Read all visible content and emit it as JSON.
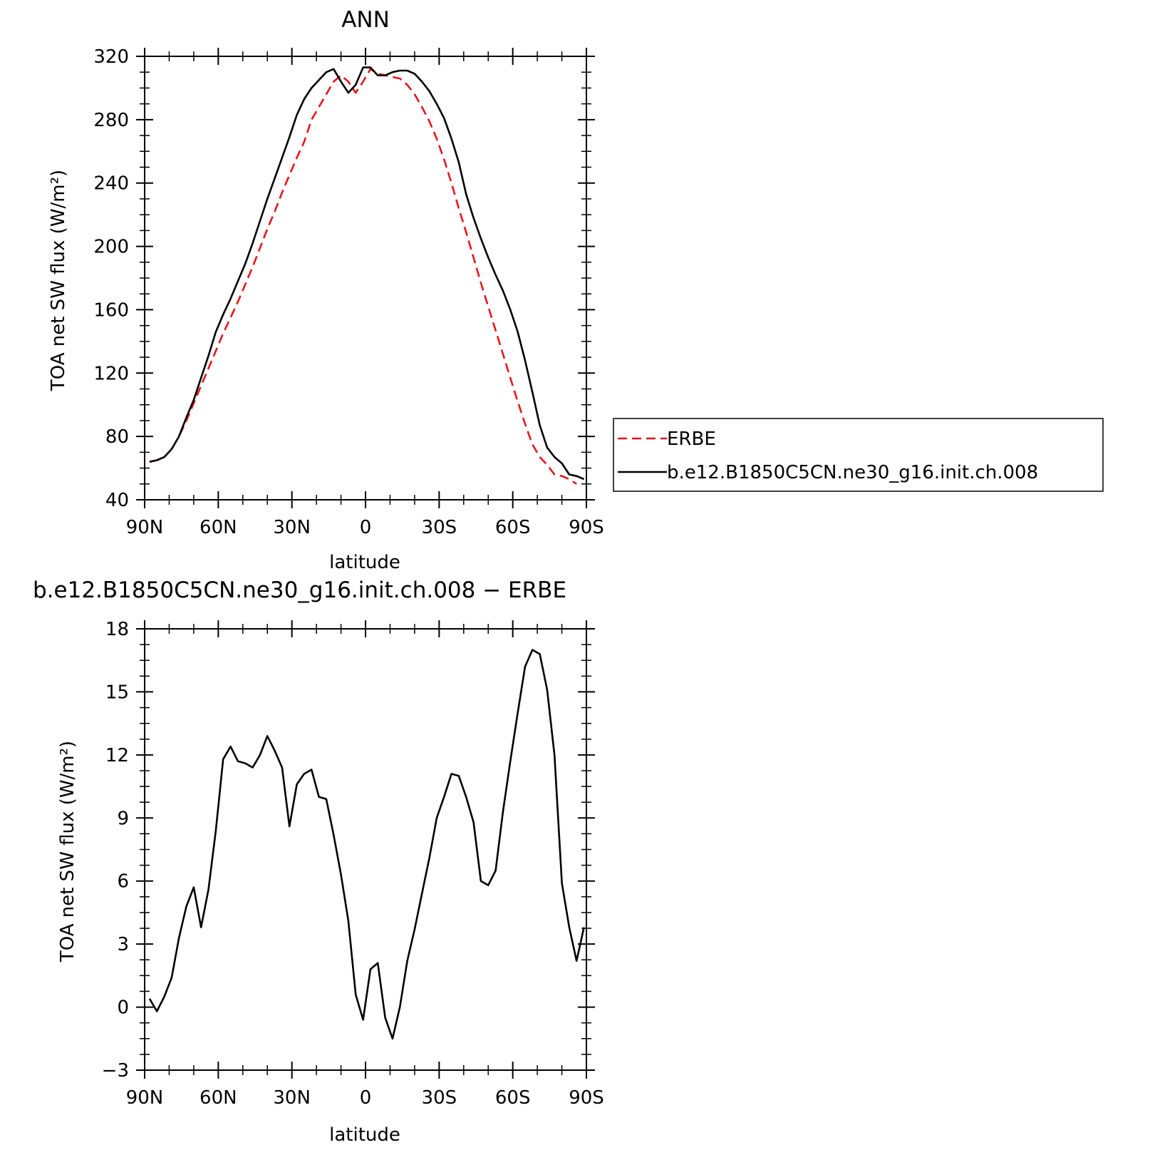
{
  "charts": [
    {
      "id": "top",
      "type": "line",
      "title": "ANN",
      "ylabel": "TOA net SW flux (W/m²)",
      "xlabel": "latitude",
      "xlim": [
        90,
        -90
      ],
      "ylim": [
        40,
        320
      ],
      "yticks": [
        40,
        80,
        120,
        160,
        200,
        240,
        280,
        320
      ],
      "xticks": [
        {
          "value": 90,
          "label": "90N"
        },
        {
          "value": 60,
          "label": "60N"
        },
        {
          "value": 30,
          "label": "30N"
        },
        {
          "value": 0,
          "label": "0"
        },
        {
          "value": -30,
          "label": "30S"
        },
        {
          "value": -60,
          "label": "60S"
        },
        {
          "value": -90,
          "label": "90S"
        }
      ],
      "legend": {
        "placement": "right",
        "entries": [
          "ERBE",
          "b.e12.B1850C5CN.ne30_g16.init.ch.008"
        ]
      },
      "series": [
        {
          "name": "ERBE",
          "color": "#e8141b",
          "dash": true,
          "points": [
            [
              88,
              64
            ],
            [
              85,
              65
            ],
            [
              82,
              67
            ],
            [
              79,
              72
            ],
            [
              76,
              80
            ],
            [
              73,
              90
            ],
            [
              70,
              101
            ],
            [
              67,
              112
            ],
            [
              64,
              123
            ],
            [
              61,
              134
            ],
            [
              58,
              145
            ],
            [
              55,
              155
            ],
            [
              52,
              165
            ],
            [
              49,
              176
            ],
            [
              46,
              187
            ],
            [
              43,
              199
            ],
            [
              40,
              211
            ],
            [
              37,
              222
            ],
            [
              34,
              234
            ],
            [
              31,
              245
            ],
            [
              28,
              256
            ],
            [
              25,
              266
            ],
            [
              22,
              280
            ],
            [
              19,
              288
            ],
            [
              16,
              296
            ],
            [
              13,
              304
            ],
            [
              10,
              308
            ],
            [
              7,
              304
            ],
            [
              4,
              297
            ],
            [
              1,
              304
            ],
            [
              -2,
              312
            ],
            [
              -5,
              309
            ],
            [
              -8,
              308
            ],
            [
              -11,
              307
            ],
            [
              -14,
              306
            ],
            [
              -17,
              302
            ],
            [
              -20,
              296
            ],
            [
              -23,
              288
            ],
            [
              -26,
              279
            ],
            [
              -29,
              268
            ],
            [
              -32,
              255
            ],
            [
              -35,
              240
            ],
            [
              -38,
              224
            ],
            [
              -41,
              209
            ],
            [
              -44,
              193
            ],
            [
              -47,
              177
            ],
            [
              -50,
              162
            ],
            [
              -53,
              147
            ],
            [
              -56,
              132
            ],
            [
              -59,
              117
            ],
            [
              -62,
              102
            ],
            [
              -65,
              88
            ],
            [
              -68,
              75
            ],
            [
              -71,
              67
            ],
            [
              -74,
              62
            ],
            [
              -77,
              56
            ],
            [
              -80,
              55
            ],
            [
              -83,
              53
            ],
            [
              -86,
              50
            ]
          ]
        },
        {
          "name": "b.e12.B1850C5CN.ne30_g16.init.ch.008",
          "color": "#000000",
          "dash": false,
          "points": [
            [
              88,
              64
            ],
            [
              85,
              65
            ],
            [
              82,
              67
            ],
            [
              79,
              72
            ],
            [
              76,
              80
            ],
            [
              73,
              92
            ],
            [
              70,
              103
            ],
            [
              67,
              117
            ],
            [
              64,
              131
            ],
            [
              61,
              146
            ],
            [
              58,
              157
            ],
            [
              55,
              167
            ],
            [
              52,
              178
            ],
            [
              49,
              189
            ],
            [
              46,
              202
            ],
            [
              43,
              216
            ],
            [
              40,
              230
            ],
            [
              37,
              243
            ],
            [
              34,
              256
            ],
            [
              31,
              269
            ],
            [
              28,
              283
            ],
            [
              25,
              293
            ],
            [
              22,
              300
            ],
            [
              19,
              305
            ],
            [
              16,
              310
            ],
            [
              13,
              312
            ],
            [
              10,
              304
            ],
            [
              7,
              297
            ],
            [
              4,
              302
            ],
            [
              1,
              313
            ],
            [
              -2,
              313
            ],
            [
              -5,
              308
            ],
            [
              -8,
              308
            ],
            [
              -11,
              310
            ],
            [
              -14,
              311
            ],
            [
              -17,
              311
            ],
            [
              -20,
              309
            ],
            [
              -23,
              304
            ],
            [
              -26,
              298
            ],
            [
              -29,
              290
            ],
            [
              -32,
              281
            ],
            [
              -35,
              268
            ],
            [
              -38,
              253
            ],
            [
              -41,
              233
            ],
            [
              -44,
              218
            ],
            [
              -47,
              205
            ],
            [
              -50,
              193
            ],
            [
              -53,
              182
            ],
            [
              -56,
              172
            ],
            [
              -59,
              160
            ],
            [
              -62,
              146
            ],
            [
              -65,
              128
            ],
            [
              -68,
              108
            ],
            [
              -71,
              87
            ],
            [
              -74,
              73
            ],
            [
              -77,
              67
            ],
            [
              -80,
              63
            ],
            [
              -83,
              56
            ],
            [
              -86,
              55
            ],
            [
              -89,
              53
            ]
          ]
        }
      ]
    },
    {
      "id": "bottom",
      "type": "line",
      "title": "b.e12.B1850C5CN.ne30_g16.init.ch.008 − ERBE",
      "ylabel": "TOA net SW flux (W/m²)",
      "xlabel": "latitude",
      "xlim": [
        90,
        -90
      ],
      "ylim": [
        -3,
        18
      ],
      "yticks": [
        -3,
        0,
        3,
        6,
        9,
        12,
        15,
        18
      ],
      "yticklabels": [
        "−3",
        "0",
        "3",
        "6",
        "9",
        "12",
        "15",
        "18"
      ],
      "xticks": [
        {
          "value": 90,
          "label": "90N"
        },
        {
          "value": 60,
          "label": "60N"
        },
        {
          "value": 30,
          "label": "30N"
        },
        {
          "value": 0,
          "label": "0"
        },
        {
          "value": -30,
          "label": "30S"
        },
        {
          "value": -60,
          "label": "60S"
        },
        {
          "value": -90,
          "label": "90S"
        }
      ],
      "series": [
        {
          "name": "",
          "color": "#000000",
          "dash": false,
          "points": [
            [
              88,
              0.4
            ],
            [
              85,
              -0.2
            ],
            [
              82,
              0.5
            ],
            [
              79,
              1.4
            ],
            [
              76,
              3.3
            ],
            [
              73,
              4.8
            ],
            [
              70,
              5.7
            ],
            [
              67,
              3.8
            ],
            [
              64,
              5.6
            ],
            [
              61,
              8.4
            ],
            [
              58,
              11.8
            ],
            [
              55,
              12.4
            ],
            [
              52,
              11.7
            ],
            [
              49,
              11.6
            ],
            [
              46,
              11.4
            ],
            [
              43,
              12.0
            ],
            [
              40,
              12.9
            ],
            [
              37,
              12.2
            ],
            [
              34,
              11.4
            ],
            [
              31,
              8.6
            ],
            [
              28,
              10.6
            ],
            [
              25,
              11.1
            ],
            [
              22,
              11.3
            ],
            [
              19,
              10.0
            ],
            [
              16,
              9.9
            ],
            [
              13,
              8.2
            ],
            [
              10,
              6.3
            ],
            [
              7,
              4.1
            ],
            [
              4,
              0.6
            ],
            [
              1,
              -0.6
            ],
            [
              -2,
              1.8
            ],
            [
              -5,
              2.1
            ],
            [
              -8,
              -0.5
            ],
            [
              -11,
              -1.5
            ],
            [
              -14,
              0.0
            ],
            [
              -17,
              2.2
            ],
            [
              -20,
              3.7
            ],
            [
              -23,
              5.4
            ],
            [
              -26,
              7.1
            ],
            [
              -29,
              9.0
            ],
            [
              -32,
              10.0
            ],
            [
              -35,
              11.1
            ],
            [
              -38,
              11.0
            ],
            [
              -41,
              10.0
            ],
            [
              -44,
              8.8
            ],
            [
              -47,
              6.0
            ],
            [
              -50,
              5.8
            ],
            [
              -53,
              6.5
            ],
            [
              -56,
              9.3
            ],
            [
              -59,
              11.7
            ],
            [
              -62,
              14.0
            ],
            [
              -65,
              16.2
            ],
            [
              -68,
              17.0
            ],
            [
              -71,
              16.8
            ],
            [
              -74,
              15.1
            ],
            [
              -77,
              12.0
            ],
            [
              -80,
              5.9
            ],
            [
              -83,
              3.8
            ],
            [
              -86,
              2.2
            ],
            [
              -89,
              3.8
            ]
          ]
        }
      ]
    }
  ]
}
